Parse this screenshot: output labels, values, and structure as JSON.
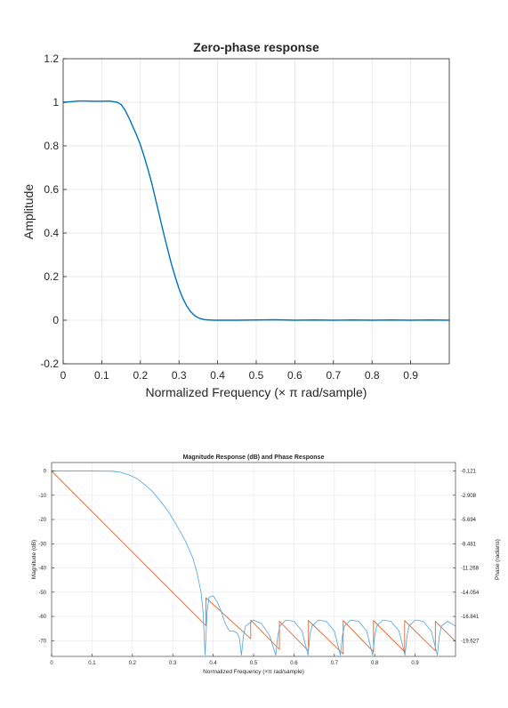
{
  "chart_data": [
    {
      "type": "line",
      "title": "Zero-phase response",
      "xlabel": "Normalized Frequency (× π rad/sample)",
      "ylabel": "Amplitude",
      "xlim": [
        0,
        1
      ],
      "ylim": [
        -0.2,
        1.2
      ],
      "xticks": [
        "0",
        "0.1",
        "0.2",
        "0.3",
        "0.4",
        "0.5",
        "0.6",
        "0.7",
        "0.8",
        "0.9"
      ],
      "yticks": [
        "-0.2",
        "0",
        "0.2",
        "0.4",
        "0.6",
        "0.8",
        "1",
        "1.2"
      ],
      "grid": true,
      "series": [
        {
          "color": "#0072BD",
          "x": [
            0,
            0.02,
            0.04,
            0.06,
            0.08,
            0.1,
            0.12,
            0.14,
            0.15,
            0.16,
            0.17,
            0.18,
            0.19,
            0.2,
            0.21,
            0.22,
            0.23,
            0.24,
            0.25,
            0.26,
            0.27,
            0.28,
            0.29,
            0.3,
            0.31,
            0.32,
            0.33,
            0.34,
            0.35,
            0.36,
            0.37,
            0.38,
            0.39,
            0.4,
            0.45,
            0.5,
            0.55,
            0.6,
            0.65,
            0.7,
            0.75,
            0.8,
            0.85,
            0.9,
            0.95,
            1.0
          ],
          "y": [
            1.0,
            1.003,
            1.006,
            1.006,
            1.005,
            1.005,
            1.006,
            1.0,
            0.99,
            0.965,
            0.93,
            0.89,
            0.85,
            0.805,
            0.75,
            0.69,
            0.625,
            0.55,
            0.475,
            0.4,
            0.33,
            0.26,
            0.2,
            0.145,
            0.1,
            0.065,
            0.04,
            0.022,
            0.011,
            0.005,
            0.002,
            0.001,
            0.0,
            0.0,
            0.0,
            0.001,
            0.002,
            0.0,
            0.001,
            0.0,
            0.001,
            0.0,
            0.001,
            0.0,
            0.001,
            0.0
          ]
        }
      ]
    },
    {
      "type": "line",
      "title": "Magnitude Response (dB) and Phase Response",
      "xlabel": "Normalized Frequency (×π rad/sample)",
      "ylabel": "Magnitude (dB)",
      "ylabel_right": "Phase (radians)",
      "xlim": [
        0,
        1
      ],
      "ylim": [
        -76.5,
        3.5
      ],
      "xticks": [
        "0",
        "0.1",
        "0.2",
        "0.3",
        "0.4",
        "0.5",
        "0.6",
        "0.7",
        "0.8",
        "0.9"
      ],
      "yticks": [
        "0",
        "-10",
        "-20",
        "-30",
        "-40",
        "-50",
        "-60",
        "-70"
      ],
      "yticks_right": [
        "-0.121",
        "-2.908",
        "-5.694",
        "-8.481",
        "-11.268",
        "-14.054",
        "-16.841",
        "-19.627"
      ],
      "grid": true,
      "magnitude": {
        "color": "#4FA3DB",
        "x": [
          0,
          0.05,
          0.1,
          0.15,
          0.17,
          0.19,
          0.21,
          0.23,
          0.25,
          0.27,
          0.29,
          0.31,
          0.33,
          0.35,
          0.36,
          0.37,
          0.375,
          0.38,
          0.385,
          0.39,
          0.4,
          0.41,
          0.42,
          0.43,
          0.44,
          0.45,
          0.46,
          0.465,
          0.47,
          0.475,
          0.48,
          0.5,
          0.52,
          0.54,
          0.555,
          0.56,
          0.565,
          0.58,
          0.6,
          0.62,
          0.635,
          0.64,
          0.645,
          0.66,
          0.68,
          0.7,
          0.715,
          0.72,
          0.725,
          0.74,
          0.76,
          0.78,
          0.795,
          0.8,
          0.805,
          0.82,
          0.84,
          0.86,
          0.875,
          0.88,
          0.885,
          0.9,
          0.92,
          0.94,
          0.955,
          0.96,
          0.965,
          0.98,
          1.0
        ],
        "y": [
          0,
          0,
          0,
          -0.1,
          -0.5,
          -1.5,
          -3,
          -5.5,
          -8.5,
          -12.5,
          -17,
          -22.5,
          -28.5,
          -36,
          -42,
          -50,
          -58,
          -76,
          -58,
          -52,
          -51.5,
          -54,
          -58,
          -63,
          -66,
          -66,
          -67,
          -69,
          -76,
          -68,
          -64,
          -61.5,
          -63,
          -68,
          -76,
          -68,
          -64,
          -61.5,
          -62,
          -66,
          -76,
          -67,
          -64,
          -61.5,
          -62,
          -66,
          -76,
          -68,
          -64,
          -61.5,
          -62,
          -66,
          -76,
          -68,
          -64,
          -61.5,
          -62,
          -66,
          -76,
          -68,
          -64,
          -61.5,
          -62,
          -66,
          -76,
          -68,
          -64,
          -62,
          -64
        ]
      },
      "phase": {
        "color": "#D95319",
        "x": [
          0,
          0.382,
          0.382,
          0.493,
          0.493,
          0.564,
          0.564,
          0.636,
          0.636,
          0.722,
          0.722,
          0.797,
          0.797,
          0.874,
          0.874,
          0.95,
          0.95,
          1.0
        ],
        "y": [
          0,
          -63.8,
          -52.3,
          -69.2,
          -61.5,
          -73.6,
          -62,
          -74.2,
          -61.7,
          -75.5,
          -61.7,
          -74.6,
          -61.7,
          -74.6,
          -61.7,
          -74.2,
          -62,
          -70.3
        ]
      }
    }
  ]
}
